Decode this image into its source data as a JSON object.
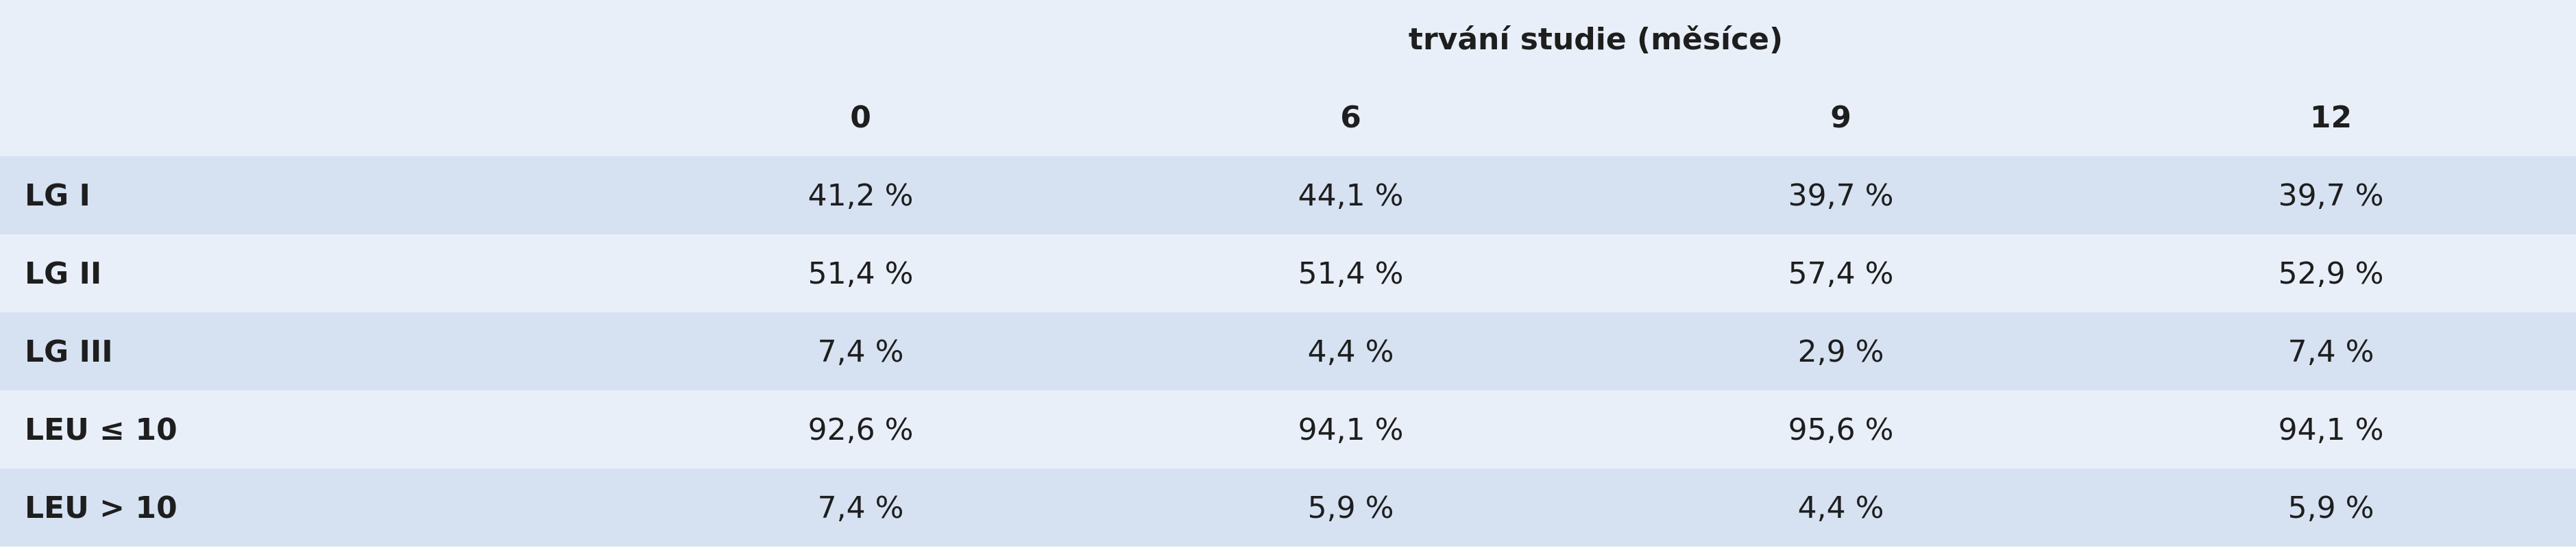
{
  "table": {
    "group_header": "trvání studie (měsíce)",
    "columns": [
      "0",
      "6",
      "9",
      "12"
    ],
    "rows": [
      [
        "LG I",
        "41,2 %",
        "44,1 %",
        "39,7 %",
        "39,7 %"
      ],
      [
        "LG II",
        "51,4 %",
        "51,4 %",
        "57,4 %",
        "52,9 %"
      ],
      [
        "LG III",
        "7,4 %",
        "4,4 %",
        "2,9 %",
        "7,4 %"
      ],
      [
        "LEU ≤ 10",
        "92,6 %",
        "94,1 %",
        "95,6 %",
        "94,1 %"
      ],
      [
        "LEU > 10",
        "7,4 %",
        "5,9 %",
        "4,4 %",
        "5,9 %"
      ]
    ]
  }
}
